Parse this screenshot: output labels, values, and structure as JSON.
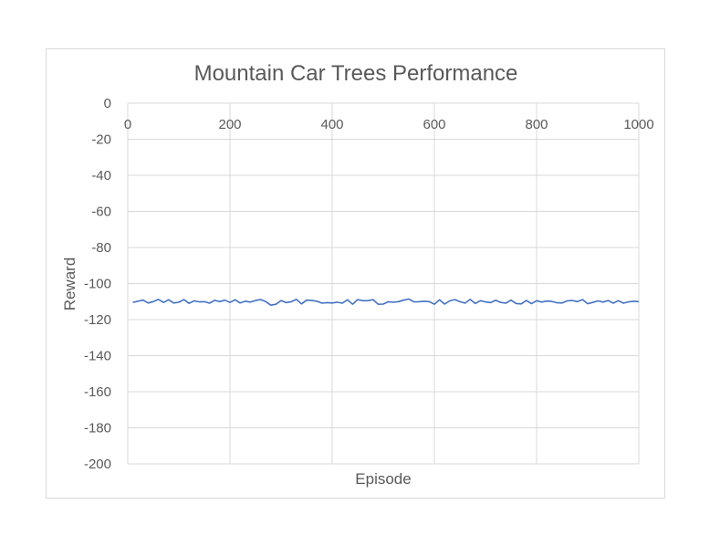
{
  "chart_data": {
    "type": "line",
    "title": "Mountain Car Trees Performance",
    "xlabel": "Episode",
    "ylabel": "Reward",
    "xlim": [
      0,
      1000
    ],
    "ylim": [
      -200,
      0
    ],
    "x_ticks": [
      "0",
      "200",
      "400",
      "600",
      "800",
      "1000"
    ],
    "y_ticks": [
      "0",
      "-20",
      "-40",
      "-60",
      "-80",
      "-100",
      "-120",
      "-140",
      "-160",
      "-180",
      "-200"
    ],
    "grid": true,
    "legend": "none",
    "series": [
      {
        "color": "#4472c4",
        "x": [
          10,
          20,
          30,
          40,
          50,
          60,
          70,
          80,
          90,
          100,
          110,
          120,
          130,
          140,
          150,
          160,
          170,
          180,
          190,
          200,
          210,
          220,
          230,
          240,
          250,
          260,
          270,
          280,
          290,
          300,
          310,
          320,
          330,
          340,
          350,
          360,
          370,
          380,
          390,
          400,
          410,
          420,
          430,
          440,
          450,
          460,
          470,
          480,
          490,
          500,
          510,
          520,
          530,
          540,
          550,
          560,
          570,
          580,
          590,
          600,
          610,
          620,
          630,
          640,
          650,
          660,
          670,
          680,
          690,
          700,
          710,
          720,
          730,
          740,
          750,
          760,
          770,
          780,
          790,
          800,
          810,
          820,
          830,
          840,
          850,
          860,
          870,
          880,
          890,
          900,
          910,
          920,
          930,
          940,
          950,
          960,
          970,
          980,
          990,
          1000
        ],
        "y": [
          -110.5,
          -109.8,
          -109.2,
          -110.8,
          -110,
          -108.8,
          -110.5,
          -109,
          -110.8,
          -110.4,
          -108.9,
          -111,
          -109.6,
          -110.2,
          -110.1,
          -110.9,
          -109.3,
          -110,
          -109.2,
          -110.5,
          -109,
          -110.8,
          -109.8,
          -110.3,
          -109.4,
          -108.9,
          -110,
          -112,
          -111.5,
          -109.4,
          -110.6,
          -110.1,
          -108.8,
          -111.3,
          -109.2,
          -109.4,
          -109.8,
          -110.9,
          -110.6,
          -110.8,
          -110.4,
          -110.9,
          -109,
          -111.5,
          -108.9,
          -109.5,
          -109.5,
          -108.9,
          -111.5,
          -111.4,
          -110.1,
          -110.4,
          -110,
          -109.2,
          -108.6,
          -110.2,
          -110.1,
          -109.8,
          -110,
          -111.5,
          -109,
          -111.4,
          -109.6,
          -108.9,
          -110.1,
          -110.9,
          -108.8,
          -111.1,
          -109.5,
          -110.2,
          -110.6,
          -109.3,
          -110.5,
          -110.9,
          -109.2,
          -111.1,
          -111.3,
          -109.4,
          -111.2,
          -109.5,
          -110.3,
          -109.7,
          -109.9,
          -110.7,
          -110.8,
          -109.6,
          -109.4,
          -110,
          -108.9,
          -111.2,
          -110.5,
          -109.6,
          -110.3,
          -109.4,
          -110.9,
          -109.5,
          -110.9,
          -110.2,
          -109.8,
          -110.1
        ]
      }
    ]
  }
}
